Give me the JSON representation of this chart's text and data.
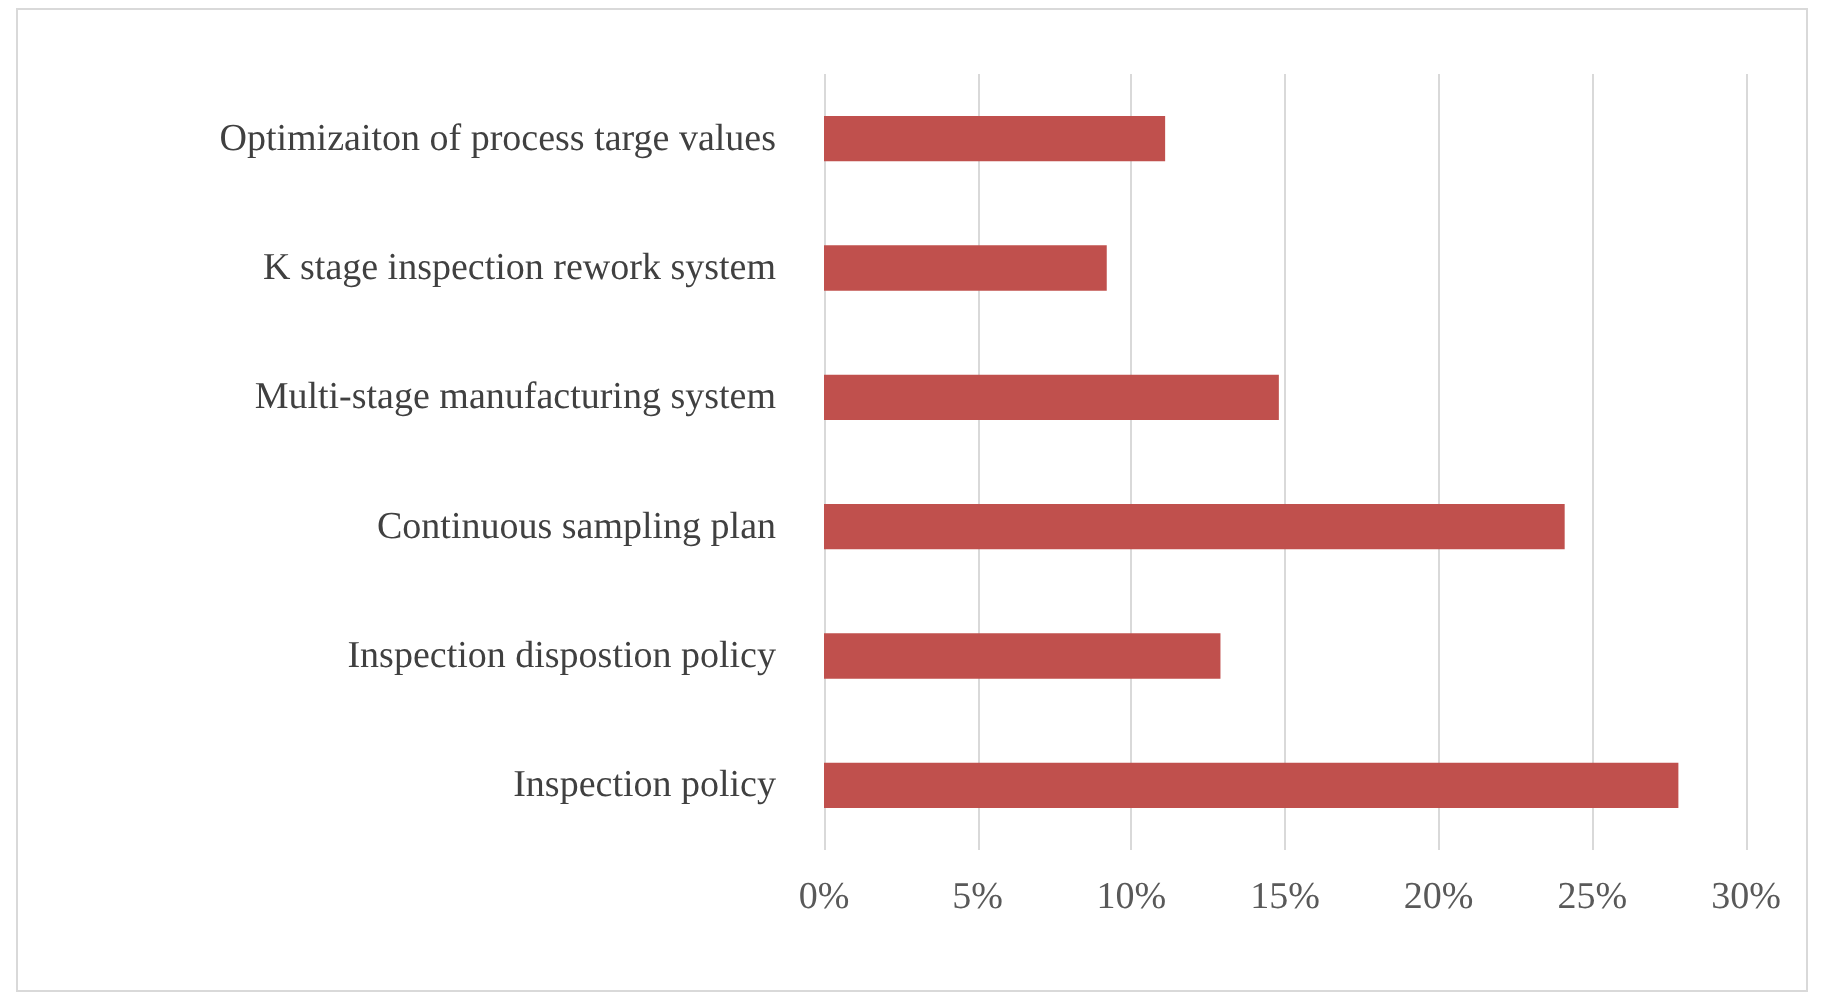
{
  "chart_data": {
    "type": "bar",
    "orientation": "horizontal",
    "categories": [
      "Optimizaiton of process targe values",
      "K stage inspection rework system",
      "Multi-stage manufacturing system",
      "Continuous sampling plan",
      "Inspection dispostion policy",
      "Inspection policy"
    ],
    "values": [
      11.1,
      9.2,
      14.8,
      24.1,
      12.9,
      27.8
    ],
    "color": "#c0504d",
    "xlim": [
      0,
      30
    ],
    "xticks": [
      {
        "value": 0,
        "label": "0%"
      },
      {
        "value": 5,
        "label": "5%"
      },
      {
        "value": 10,
        "label": "10%"
      },
      {
        "value": 15,
        "label": "15%"
      },
      {
        "value": 20,
        "label": "20%"
      },
      {
        "value": 25,
        "label": "25%"
      },
      {
        "value": 30,
        "label": "30%"
      }
    ],
    "grid": "x"
  }
}
